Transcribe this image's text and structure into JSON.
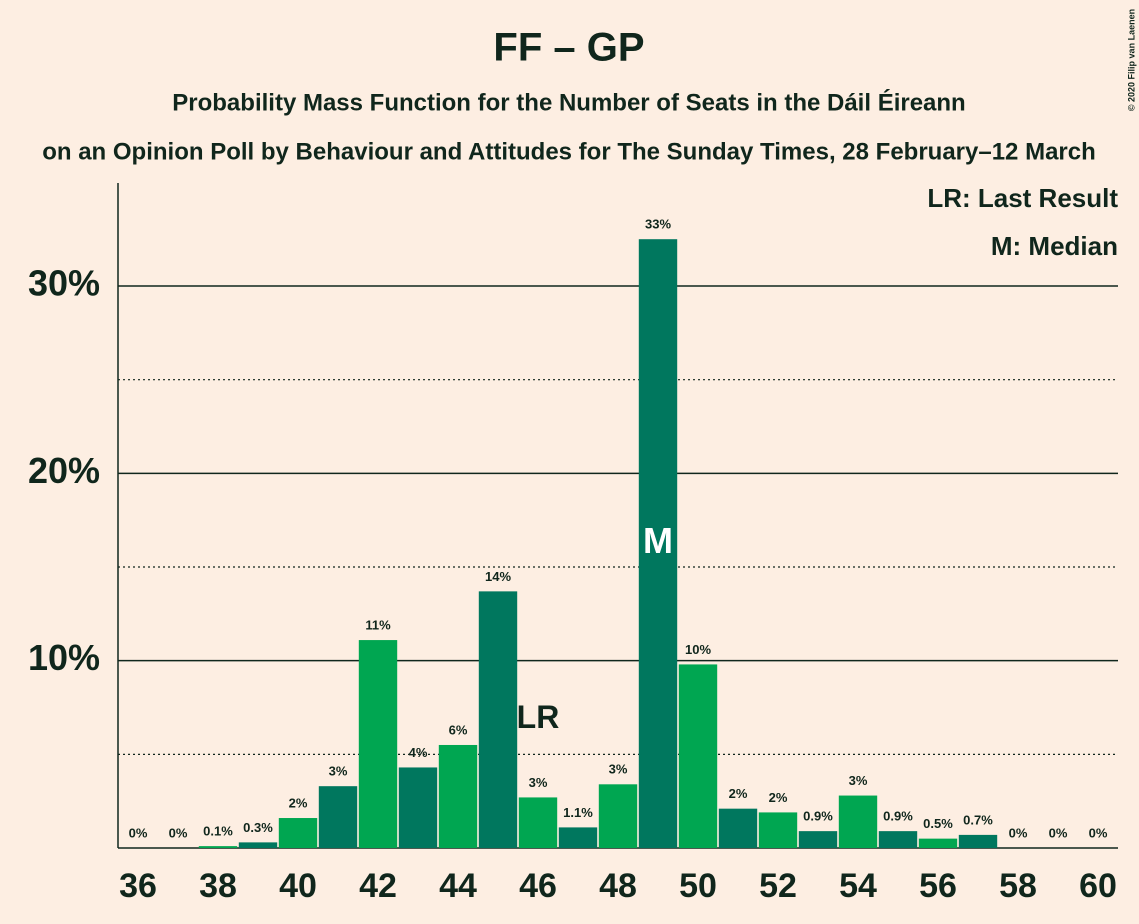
{
  "chart_data": {
    "type": "bar",
    "title": "FF – GP",
    "subtitle": "Probability Mass Function for the Number of Seats in the Dáil Éireann",
    "subtitle2": "on an Opinion Poll by Behaviour and Attitudes for The Sunday Times, 28 February–12 March",
    "copyright": "© 2020 Filip van Laenen",
    "legend": [
      "LR: Last Result",
      "M: Median"
    ],
    "legend_position": "upper right",
    "x": [
      36,
      37,
      38,
      39,
      40,
      41,
      42,
      43,
      44,
      45,
      46,
      47,
      48,
      49,
      50,
      51,
      52,
      53,
      54,
      55,
      56,
      57,
      58,
      59,
      60
    ],
    "values": [
      0,
      0,
      0.1,
      0.3,
      1.6,
      3.3,
      11.1,
      4.3,
      5.5,
      13.7,
      2.7,
      1.1,
      3.4,
      32.5,
      9.8,
      2.1,
      1.9,
      0.9,
      2.8,
      0.9,
      0.5,
      0.7,
      0,
      0,
      0
    ],
    "value_labels": [
      "0%",
      "0%",
      "0.1%",
      "0.3%",
      "2%",
      "3%",
      "11%",
      "4%",
      "6%",
      "14%",
      "3%",
      "1.1%",
      "3%",
      "33%",
      "10%",
      "2%",
      "2%",
      "0.9%",
      "3%",
      "0.9%",
      "0.5%",
      "0.7%",
      "0%",
      "0%",
      "0%"
    ],
    "colors": [
      "#00a651",
      "#00775e",
      "#00a651",
      "#00775e",
      "#00a651",
      "#00775e",
      "#00a651",
      "#00775e",
      "#00a651",
      "#00775e",
      "#00a651",
      "#00775e",
      "#00a651",
      "#00775e",
      "#00a651",
      "#00775e",
      "#00a651",
      "#00775e",
      "#00a651",
      "#00775e",
      "#00a651",
      "#00775e",
      "#00a651",
      "#00775e",
      "#00a651"
    ],
    "annotations": [
      {
        "text": "LR",
        "x": 46
      },
      {
        "text": "M",
        "x": 49
      }
    ],
    "xlim": [
      35.5,
      60.5
    ],
    "xticks": [
      36,
      38,
      40,
      42,
      44,
      46,
      48,
      50,
      52,
      54,
      56,
      58,
      60
    ],
    "ylim": [
      0,
      35.5
    ],
    "yticks": [
      {
        "value": 10,
        "label": "10%"
      },
      {
        "value": 20,
        "label": "20%"
      },
      {
        "value": 30,
        "label": "30%"
      }
    ],
    "minor_yticks": [
      5,
      15,
      25
    ],
    "grid": true
  }
}
